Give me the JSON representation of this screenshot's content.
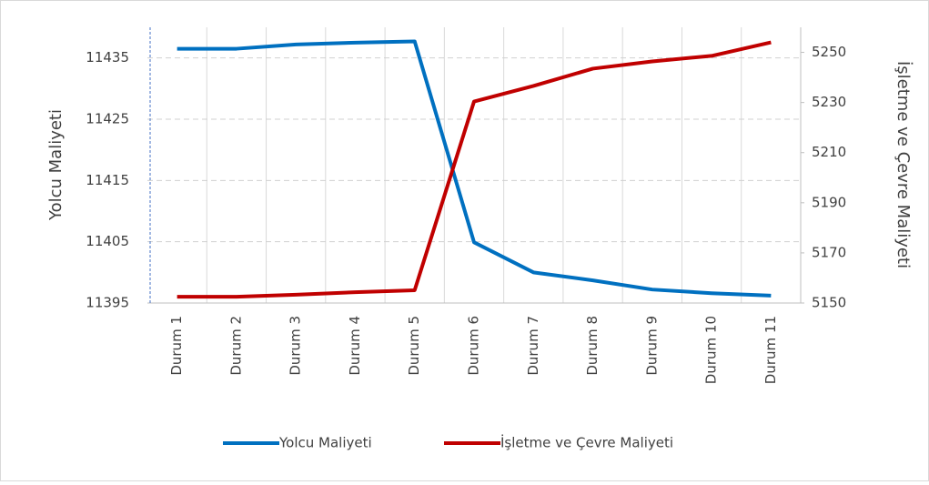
{
  "chart_data": {
    "type": "line",
    "categories": [
      "Durum 1",
      "Durum 2",
      "Durum 3",
      "Durum 4",
      "Durum 5",
      "Durum 6",
      "Durum 7",
      "Durum 8",
      "Durum 9",
      "Durum 10",
      "Durum 11"
    ],
    "series": [
      {
        "name": "Yolcu Maliyeti",
        "color": "#0070c0",
        "values": [
          11436.5,
          11436.5,
          11437.2,
          11437.5,
          11437.7,
          11404.9,
          11400,
          11398.7,
          11397.2,
          11396.6,
          11396.2
        ]
      },
      {
        "name": "İşletme ve Çevre Maliyeti",
        "color": "#c00000",
        "axis": "y2",
        "values": [
          5152.5,
          5152.5,
          5153.3,
          5154.3,
          5155.1,
          5230.4,
          5236.6,
          5243.5,
          5246.4,
          5248.6,
          5254
        ]
      }
    ],
    "ylabel": "Yolcu Maliyeti",
    "y2label": "İşletme ve Çevre Maliyeti",
    "ylim": [
      11395,
      11440
    ],
    "yticks": [
      11395,
      11405,
      11415,
      11425,
      11435
    ],
    "y2lim": [
      5150,
      5260
    ],
    "y2ticks": [
      5150,
      5170,
      5190,
      5210,
      5230,
      5250
    ],
    "grid": true,
    "legend": "bottom"
  }
}
